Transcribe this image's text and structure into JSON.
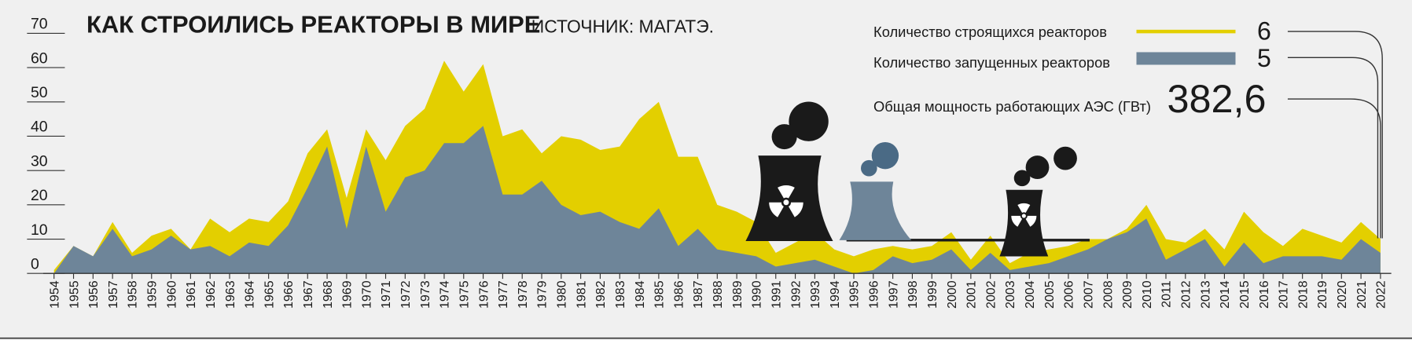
{
  "chart_data": {
    "type": "area",
    "title": "КАК СТРОИЛИСЬ РЕАКТОРЫ В МИРЕ",
    "subtitle": "ИСТОЧНИК: МАГАТЭ.",
    "x": [
      1954,
      1955,
      1956,
      1957,
      1958,
      1959,
      1960,
      1961,
      1962,
      1963,
      1964,
      1965,
      1966,
      1967,
      1968,
      1969,
      1970,
      1971,
      1972,
      1973,
      1974,
      1975,
      1976,
      1977,
      1978,
      1979,
      1980,
      1981,
      1982,
      1983,
      1984,
      1985,
      1986,
      1987,
      1988,
      1989,
      1990,
      1991,
      1992,
      1993,
      1994,
      1995,
      1996,
      1997,
      1998,
      1999,
      2000,
      2001,
      2002,
      2003,
      2004,
      2005,
      2006,
      2007,
      2008,
      2009,
      2010,
      2011,
      2012,
      2013,
      2014,
      2015,
      2016,
      2017,
      2018,
      2019,
      2020,
      2021,
      2022
    ],
    "xlim": [
      1954,
      2022
    ],
    "ylim": [
      0,
      70
    ],
    "yticks": [
      0,
      10,
      20,
      30,
      40,
      50,
      60,
      70
    ],
    "series": [
      {
        "name": "Количество строящихся реакторов",
        "color": "#e3cf00",
        "legend_value": 6,
        "values": [
          1,
          8,
          5,
          15,
          6,
          11,
          13,
          7,
          16,
          12,
          16,
          15,
          21,
          35,
          42,
          22,
          42,
          33,
          43,
          48,
          62,
          53,
          61,
          40,
          42,
          35,
          40,
          39,
          36,
          37,
          45,
          50,
          34,
          34,
          20,
          18,
          15,
          6,
          9,
          12,
          7,
          5,
          7,
          8,
          7,
          8,
          12,
          4,
          11,
          3,
          6,
          7,
          8,
          10,
          10,
          13,
          20,
          10,
          9,
          13,
          7,
          18,
          12,
          8,
          13,
          11,
          9,
          15,
          10
        ]
      },
      {
        "name": "Количество запущенных реакторов",
        "color": "#6e8599",
        "legend_value": 5,
        "values": [
          0,
          8,
          5,
          13,
          5,
          7,
          11,
          7,
          8,
          5,
          9,
          8,
          14,
          25,
          37,
          13,
          37,
          18,
          28,
          30,
          38,
          38,
          43,
          23,
          23,
          27,
          20,
          17,
          18,
          15,
          13,
          19,
          8,
          13,
          7,
          6,
          5,
          2,
          3,
          4,
          2,
          0,
          1,
          5,
          3,
          4,
          7,
          1,
          6,
          1,
          2,
          3,
          5,
          7,
          10,
          12,
          16,
          4,
          7,
          10,
          2,
          9,
          3,
          5,
          5,
          5,
          4,
          10,
          6
        ]
      }
    ],
    "annotation": {
      "text": "Общая мощность работающих АЭС (ГВт)",
      "value": {
        "value": 382.6,
        "label": "382,6"
      }
    }
  }
}
